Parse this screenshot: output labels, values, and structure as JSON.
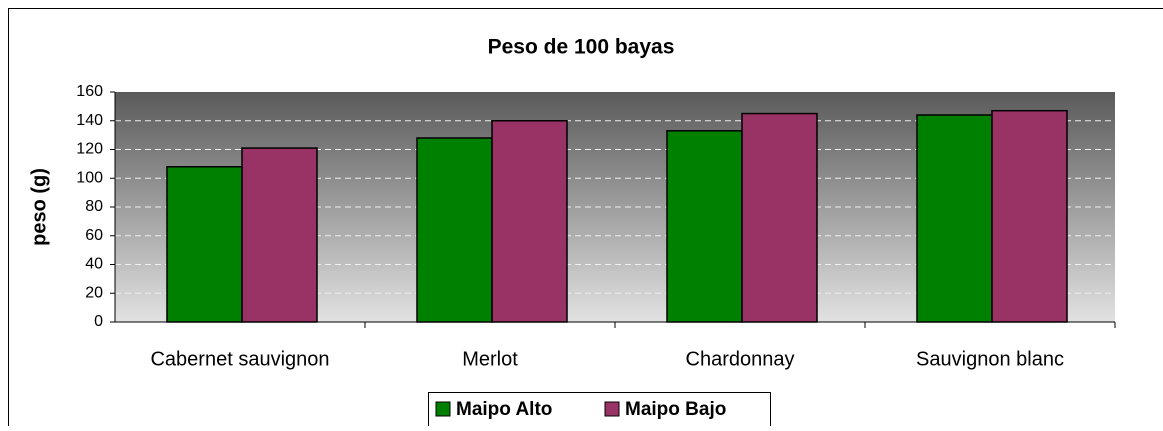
{
  "chart_data": {
    "type": "bar",
    "title": "Peso de 100 bayas",
    "y_label": "peso (g)",
    "categories": [
      "Cabernet sauvignon",
      "Merlot",
      "Chardonnay",
      "Sauvignon blanc"
    ],
    "series": [
      {
        "name": "Maipo Alto",
        "color": "#008000",
        "values": [
          108,
          128,
          133,
          144
        ]
      },
      {
        "name": "Maipo Bajo",
        "color": "#993366",
        "values": [
          121,
          140,
          145,
          147
        ]
      }
    ],
    "ylim": [
      0,
      160
    ],
    "yticks": [
      0,
      20,
      40,
      60,
      80,
      100,
      120,
      140,
      160
    ],
    "grid": true,
    "legend": "bottom"
  }
}
